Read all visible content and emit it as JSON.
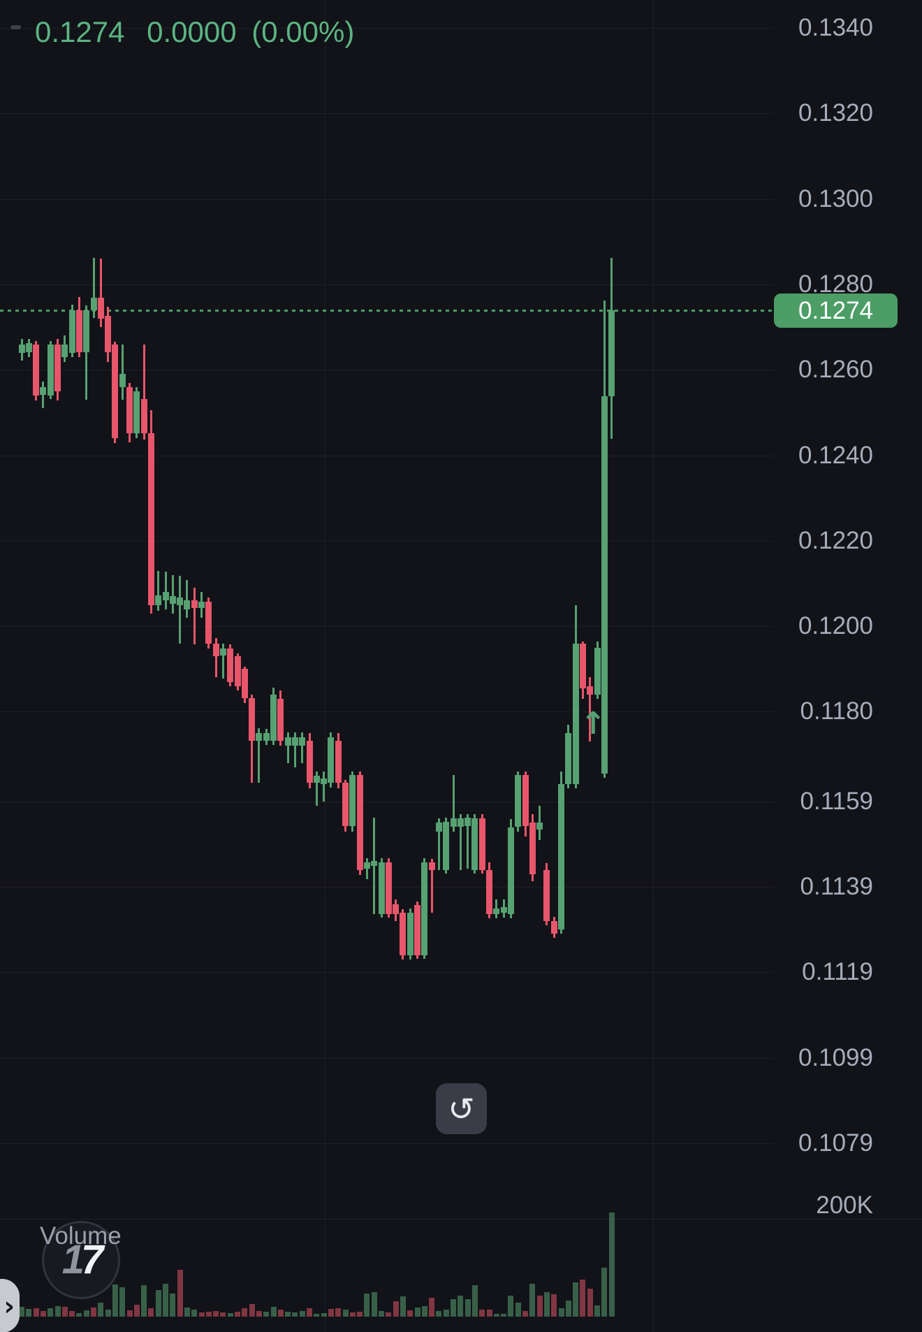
{
  "ticker": {
    "price": "0.1274",
    "change": "0.0000",
    "change_pct": "(0.00%)"
  },
  "price_axis": {
    "labels": [
      "0.1340",
      "0.1320",
      "0.1300",
      "0.1280",
      "0.1260",
      "0.1240",
      "0.1220",
      "0.1200",
      "0.1180",
      "0.1159",
      "0.1139",
      "0.1119",
      "0.1099",
      "0.1079"
    ],
    "badge_value": "0.1274"
  },
  "volume_axis": {
    "max_label": "200K"
  },
  "volume_pane": {
    "title": "Volume",
    "watermark_text": "17"
  },
  "controls": {
    "refresh_glyph": "↺",
    "expand_glyph": "›"
  },
  "colors": {
    "background": "#121318",
    "up": "#57a172",
    "down": "#e8566b",
    "volume_up": "rgba(87,161,114,0.55)",
    "volume_down": "rgba(232,86,107,0.52)",
    "ticker_text": "#5cb483",
    "badge_bg": "#4d9e66",
    "badge_text": "#ffffff",
    "axis_text": "#a6adba",
    "last_price_line": "#4d9e66"
  },
  "chart_data": {
    "type": "candlestick",
    "panes": [
      "price",
      "volume"
    ],
    "title": "",
    "x_axis_labels": [],
    "price_axis_ticks": [
      0.134,
      0.132,
      0.13,
      0.128,
      0.126,
      0.124,
      0.122,
      0.12,
      0.118,
      0.1159,
      0.1139,
      0.1119,
      0.1099,
      0.1079
    ],
    "last_price": 0.1274,
    "price_range_shown": [
      0.1065,
      0.1345
    ],
    "grid": true,
    "scale_type": "log",
    "candles_ohlc": [
      [
        0.1264,
        0.12672,
        0.12622,
        0.1266
      ],
      [
        0.12642,
        0.12672,
        0.1263,
        0.12662
      ],
      [
        0.1266,
        0.12668,
        0.12528,
        0.1254
      ],
      [
        0.12542,
        0.12572,
        0.1251,
        0.1256
      ],
      [
        0.1254,
        0.12668,
        0.12532,
        0.1266
      ],
      [
        0.1266,
        0.12672,
        0.12528,
        0.1255
      ],
      [
        0.1263,
        0.1268,
        0.12618,
        0.1266
      ],
      [
        0.1264,
        0.12752,
        0.1263,
        0.1274
      ],
      [
        0.1274,
        0.1277,
        0.1263,
        0.12642
      ],
      [
        0.12642,
        0.1275,
        0.1253,
        0.1274
      ],
      [
        0.1274,
        0.12862,
        0.12722,
        0.12768
      ],
      [
        0.12768,
        0.1286,
        0.127,
        0.1272
      ],
      [
        0.12726,
        0.12748,
        0.12618,
        0.12642
      ],
      [
        0.1266,
        0.12666,
        0.12428,
        0.1244
      ],
      [
        0.1256,
        0.1266,
        0.1253,
        0.1259
      ],
      [
        0.1256,
        0.1257,
        0.1243,
        0.12452
      ],
      [
        0.12452,
        0.1256,
        0.1244,
        0.1255
      ],
      [
        0.12532,
        0.1266,
        0.12436,
        0.12452
      ],
      [
        0.12452,
        0.12506,
        0.1203,
        0.1205
      ],
      [
        0.1205,
        0.1213,
        0.12036,
        0.12072
      ],
      [
        0.1206,
        0.12128,
        0.1204,
        0.1208
      ],
      [
        0.12052,
        0.1212,
        0.1203,
        0.1207
      ],
      [
        0.1205,
        0.12118,
        0.1196,
        0.12068
      ],
      [
        0.1204,
        0.12108,
        0.1202,
        0.1206
      ],
      [
        0.1206,
        0.1209,
        0.11958,
        0.12042
      ],
      [
        0.12042,
        0.1208,
        0.1202,
        0.12058
      ],
      [
        0.12058,
        0.12068,
        0.11948,
        0.1196
      ],
      [
        0.1196,
        0.11972,
        0.1188,
        0.1193
      ],
      [
        0.11932,
        0.1196,
        0.11878,
        0.11948
      ],
      [
        0.11948,
        0.11958,
        0.1186,
        0.1187
      ],
      [
        0.1193,
        0.11936,
        0.1185,
        0.1186
      ],
      [
        0.119,
        0.11906,
        0.1182,
        0.11832
      ],
      [
        0.11832,
        0.1184,
        0.11634,
        0.11732
      ],
      [
        0.11732,
        0.11762,
        0.11634,
        0.1175
      ],
      [
        0.11732,
        0.1176,
        0.11722,
        0.1175
      ],
      [
        0.11732,
        0.11856,
        0.11722,
        0.1184
      ],
      [
        0.1183,
        0.1185,
        0.1172,
        0.11732
      ],
      [
        0.1172,
        0.11752,
        0.1168,
        0.1174
      ],
      [
        0.1172,
        0.11752,
        0.1167,
        0.1174
      ],
      [
        0.1172,
        0.11752,
        0.1168,
        0.1174
      ],
      [
        0.11732,
        0.1175,
        0.1162,
        0.11634
      ],
      [
        0.11634,
        0.1166,
        0.1158,
        0.1165
      ],
      [
        0.1163,
        0.1166,
        0.1159,
        0.11644
      ],
      [
        0.11634,
        0.11752,
        0.11622,
        0.1174
      ],
      [
        0.11732,
        0.1175,
        0.1162,
        0.11634
      ],
      [
        0.11634,
        0.1164,
        0.1152,
        0.11532
      ],
      [
        0.11532,
        0.1166,
        0.1152,
        0.11652
      ],
      [
        0.11652,
        0.1166,
        0.11418,
        0.1143
      ],
      [
        0.11432,
        0.11458,
        0.11408,
        0.11448
      ],
      [
        0.1144,
        0.11552,
        0.11327,
        0.1145
      ],
      [
        0.11327,
        0.11458,
        0.11318,
        0.11447
      ],
      [
        0.11447,
        0.11458,
        0.11318,
        0.11327
      ],
      [
        0.1135,
        0.1136,
        0.1131,
        0.11327
      ],
      [
        0.1133,
        0.11338,
        0.1122,
        0.1123
      ],
      [
        0.1123,
        0.1134,
        0.1122,
        0.1133
      ],
      [
        0.11348,
        0.11356,
        0.11222,
        0.1123
      ],
      [
        0.1123,
        0.11458,
        0.11222,
        0.11447
      ],
      [
        0.11447,
        0.11456,
        0.1133,
        0.1143
      ],
      [
        0.1152,
        0.1155,
        0.1143,
        0.1154
      ],
      [
        0.1143,
        0.11552,
        0.11422,
        0.11543
      ],
      [
        0.1153,
        0.11652,
        0.1152,
        0.1155
      ],
      [
        0.1153,
        0.1156,
        0.1143,
        0.1155
      ],
      [
        0.11532,
        0.1156,
        0.11432,
        0.11552
      ],
      [
        0.1143,
        0.1156,
        0.11422,
        0.1155
      ],
      [
        0.1155,
        0.1156,
        0.11422,
        0.1143
      ],
      [
        0.1143,
        0.11447,
        0.11316,
        0.11327
      ],
      [
        0.11327,
        0.1136,
        0.11316,
        0.1134
      ],
      [
        0.1133,
        0.1136,
        0.11318,
        0.11342
      ],
      [
        0.11327,
        0.11549,
        0.11316,
        0.1153
      ],
      [
        0.1153,
        0.1166,
        0.1152,
        0.11652
      ],
      [
        0.11652,
        0.1166,
        0.11508,
        0.11532
      ],
      [
        0.1154,
        0.1156,
        0.11404,
        0.1142
      ],
      [
        0.11525,
        0.1158,
        0.115,
        0.1154
      ],
      [
        0.1143,
        0.11445,
        0.113,
        0.1131
      ],
      [
        0.1131,
        0.1132,
        0.1127,
        0.1128
      ],
      [
        0.1129,
        0.1166,
        0.1128,
        0.1163
      ],
      [
        0.1163,
        0.1177,
        0.1162,
        0.1175
      ],
      [
        0.1163,
        0.1205,
        0.1162,
        0.1196
      ],
      [
        0.1196,
        0.11965,
        0.1183,
        0.11855
      ],
      [
        0.1186,
        0.1188,
        0.1173,
        0.1184
      ],
      [
        0.1184,
        0.11965,
        0.1183,
        0.1195
      ],
      [
        0.11655,
        0.12762,
        0.11645,
        0.12538
      ],
      [
        0.12538,
        0.12862,
        0.12438,
        0.1274
      ]
    ],
    "volumes_k": [
      18,
      14,
      15,
      10,
      15,
      19,
      18,
      10,
      6,
      11,
      16,
      25,
      13,
      58,
      53,
      11,
      21,
      57,
      15,
      48,
      59,
      42,
      84,
      16,
      13,
      8,
      9,
      10,
      8,
      6,
      9,
      15,
      23,
      10,
      9,
      18,
      13,
      9,
      8,
      10,
      15,
      5,
      6,
      14,
      15,
      13,
      8,
      9,
      42,
      44,
      10,
      8,
      28,
      36,
      11,
      16,
      19,
      34,
      10,
      13,
      31,
      38,
      31,
      57,
      13,
      13,
      5,
      5,
      38,
      25,
      10,
      59,
      38,
      44,
      40,
      15,
      29,
      62,
      67,
      50,
      20,
      88,
      187
    ],
    "volume_colors": "uudduudduuduuuuddudu uuduuddddu dddduuduuu duuddudduu udduduuduu uuuudduuuu dududuuudduuu",
    "volume_scale_max_k": 200,
    "marker": {
      "type": "arrow-up",
      "candle_index": 80
    },
    "legend_position": "none",
    "ylabel": "",
    "xlabel": ""
  }
}
